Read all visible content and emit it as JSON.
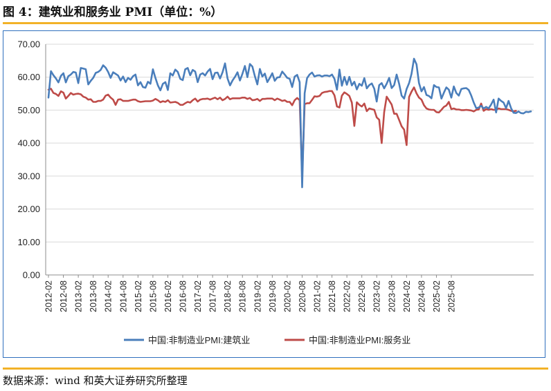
{
  "figure": {
    "title": "图 4：建筑业和服务业 PMI（单位：%）",
    "source": "数据来源：wind 和英大证券研究所整理"
  },
  "colors": {
    "accent_rule": "#f2b227",
    "frame": "#2f6fbd",
    "series1": "#4a7ebb",
    "series2": "#be4b48",
    "grid": "#d9d9d9"
  },
  "chart_data": {
    "type": "line",
    "title": "",
    "xlabel": "",
    "ylabel": "",
    "ylim": [
      0,
      70
    ],
    "yticks": [
      0,
      10,
      20,
      30,
      40,
      50,
      60,
      70
    ],
    "ytick_labels": [
      "0.00",
      "10.00",
      "20.00",
      "30.00",
      "40.00",
      "50.00",
      "60.00",
      "70.00"
    ],
    "grid": "horizontal",
    "legend_position": "bottom",
    "x_start": "2012-02",
    "x_end": "2025-12",
    "xtick_labels": [
      "2012-02",
      "2012-08",
      "2013-02",
      "2013-08",
      "2014-02",
      "2014-08",
      "2015-02",
      "2015-08",
      "2016-02",
      "2016-08",
      "2017-02",
      "2017-08",
      "2018-02",
      "2018-08",
      "2019-02",
      "2019-08",
      "2020-02",
      "2020-08",
      "2021-02",
      "2021-08",
      "2022-02",
      "2022-08",
      "2023-02",
      "2023-08",
      "2024-02",
      "2024-08",
      "2025-02",
      "2025-08"
    ],
    "series": [
      {
        "name": "中国:非制造业PMI:建筑业",
        "values": [
          53.8,
          61.8,
          60.6,
          59.6,
          58.4,
          60.4,
          61.2,
          58.4,
          60.3,
          60.8,
          61.6,
          61.4,
          58.2,
          62.8,
          62.6,
          62.4,
          57.8,
          58.9,
          59.8,
          61.3,
          61.6,
          62.2,
          63.6,
          62.9,
          61.6,
          59.8,
          61.5,
          61.0,
          60.5,
          59.0,
          60.2,
          58.5,
          59.8,
          59.2,
          60.3,
          60.8,
          57.5,
          58.5,
          57.0,
          56.8,
          58.6,
          58.0,
          62.4,
          59.8,
          57.5,
          56.0,
          58.0,
          58.5,
          56.1,
          61.2,
          60.5,
          62.3,
          61.6,
          59.5,
          59.1,
          62.4,
          62.8,
          60.6,
          62.2,
          61.7,
          58.5,
          60.8,
          61.2,
          60.5,
          61.7,
          62.5,
          59.4,
          61.3,
          61.4,
          59.6,
          61.5,
          64.2,
          59.6,
          57.5,
          59.0,
          60.1,
          61.5,
          59.0,
          61.0,
          63.4,
          60.0,
          64.0,
          63.2,
          60.3,
          57.8,
          62.5,
          60.2,
          61.1,
          58.5,
          59.8,
          61.2,
          58.9,
          59.9,
          60.0,
          61.7,
          60.8,
          59.8,
          59.5,
          57.0,
          60.2,
          60.7,
          58.5,
          26.6,
          55.1,
          59.7,
          60.8,
          61.4,
          60.2,
          60.5,
          60.6,
          60.2,
          60.5,
          60.5,
          60.3,
          60.8,
          59.5,
          56.2,
          62.3,
          57.4,
          60.1,
          57.7,
          60.1,
          57.5,
          58.6,
          56.3,
          58.0,
          57.4,
          59.7,
          56.6,
          57.6,
          58.1,
          56.5,
          52.6,
          57.6,
          58.2,
          56.6,
          58.0,
          59.8,
          56.7,
          57.6,
          60.8,
          58.0,
          54.4,
          53.5,
          56.4,
          58.2,
          61.0,
          65.6,
          63.9,
          58.2,
          55.7,
          57.0,
          54.6,
          54.3,
          53.6,
          57.6,
          57.0,
          56.9,
          53.5,
          55.3,
          56.9,
          56.2,
          53.8,
          57.2,
          55.2,
          54.4,
          56.4,
          56.6,
          56.7,
          56.1,
          54.4,
          52.3,
          50.6,
          50.8,
          51.3,
          50.5,
          51.0,
          50.5,
          51.7,
          53.2,
          49.3,
          53.5,
          52.8,
          52.3,
          50.6,
          52.8,
          50.6,
          49.2,
          49.1,
          49.6,
          49.1,
          49.0,
          49.5,
          49.4,
          49.6
        ]
      },
      {
        "name": "中国:非制造业PMI:服务业",
        "values": [
          56.2,
          56.5,
          55.2,
          54.9,
          54.3,
          55.7,
          55.3,
          53.5,
          54.3,
          55.2,
          54.7,
          54.9,
          55.0,
          54.8,
          54.1,
          53.8,
          53.2,
          53.3,
          52.5,
          52.5,
          52.8,
          52.8,
          53.2,
          54.4,
          54.7,
          53.8,
          53.2,
          51.6,
          53.2,
          53.3,
          52.8,
          52.8,
          52.8,
          53.0,
          53.2,
          53.2,
          52.7,
          52.5,
          52.6,
          52.7,
          52.7,
          52.7,
          52.9,
          53.4,
          53.0,
          52.4,
          52.7,
          52.5,
          53.0,
          52.3,
          52.4,
          52.5,
          52.2,
          51.6,
          51.6,
          52.1,
          52.5,
          52.3,
          53.0,
          53.5,
          52.6,
          53.2,
          53.4,
          53.4,
          53.5,
          53.2,
          53.5,
          53.8,
          53.3,
          53.8,
          53.0,
          53.4,
          54.1,
          53.3,
          53.6,
          53.6,
          53.6,
          53.6,
          53.8,
          53.8,
          53.4,
          53.7,
          53.0,
          53.1,
          53.4,
          52.8,
          53.4,
          53.4,
          53.5,
          53.5,
          53.5,
          53.0,
          53.5,
          53.2,
          52.8,
          53.0,
          52.5,
          52.5,
          51.5,
          53.0,
          53.7,
          53.0,
          30.1,
          51.8,
          52.1,
          52.1,
          53.1,
          54.2,
          54.1,
          54.3,
          55.2,
          55.5,
          55.6,
          55.8,
          55.8,
          54.5,
          51.1,
          50.8,
          54.4,
          55.4,
          54.9,
          54.3,
          52.3,
          45.2,
          52.4,
          51.6,
          51.1,
          52.0,
          49.7,
          50.5,
          50.3,
          50.1,
          47.8,
          47.1,
          40.0,
          49.4,
          54.1,
          52.9,
          51.7,
          48.9,
          48.9,
          47.0,
          45.1,
          44.1,
          39.4,
          54.0,
          55.6,
          56.9,
          55.1,
          53.8,
          53.2,
          51.5,
          50.5,
          50.2,
          50.1,
          50.1,
          49.4,
          49.3,
          50.1,
          51.0,
          51.4,
          52.5,
          50.3,
          50.5,
          50.2,
          50.2,
          50.0,
          50.0,
          50.1,
          50.0,
          49.9,
          49.6,
          50.1,
          50.2,
          52.0,
          49.8,
          50.3,
          50.1,
          50.3,
          50.1,
          50.1,
          50.5,
          50.3,
          50.3,
          50.3,
          50.1,
          49.8,
          49.6,
          49.8
        ]
      }
    ]
  }
}
